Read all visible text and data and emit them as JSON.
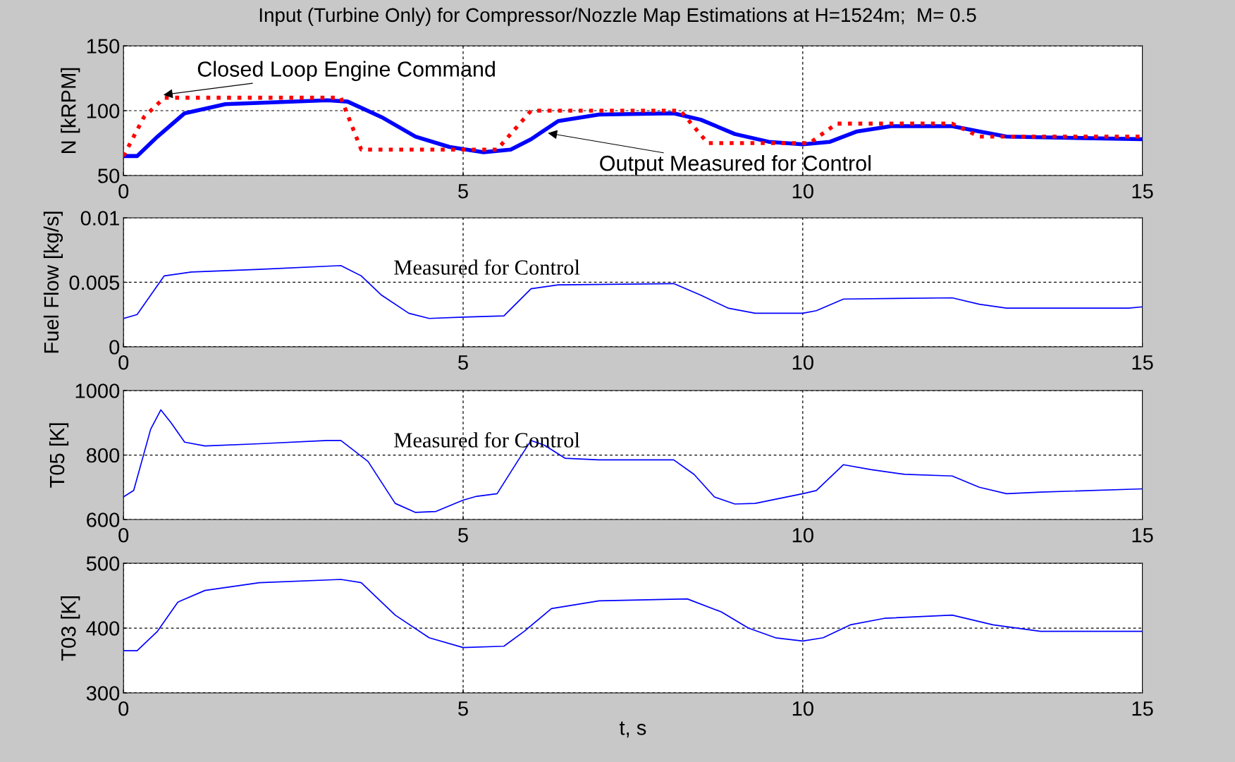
{
  "chart_data": [
    {
      "type": "line",
      "title": "Input (Turbine Only) for Compressor/Nozzle Map Estimations at H=1524m;  M= 0.5",
      "ylabel": "N [kRPM]",
      "xlim": [
        0,
        15
      ],
      "xticks": [
        0,
        5,
        10,
        15
      ],
      "ylim": [
        50,
        150
      ],
      "yticks": [
        50,
        100,
        150
      ],
      "grid": true,
      "series": [
        {
          "color": "#ff0000",
          "line_style": "dotted",
          "x": [
            0,
            0.3,
            0.6,
            3.2,
            3.5,
            5.5,
            6.0,
            8.2,
            8.6,
            10.1,
            10.5,
            12.2,
            12.6,
            15
          ],
          "values": [
            65,
            95,
            110,
            110,
            70,
            70,
            100,
            100,
            75,
            75,
            90,
            90,
            80,
            80
          ]
        },
        {
          "color": "#0000ff",
          "line_style": "solid",
          "x": [
            0,
            0.2,
            0.5,
            0.9,
            1.5,
            3,
            3.3,
            3.8,
            4.3,
            4.8,
            5.3,
            5.7,
            6,
            6.4,
            7,
            8.1,
            8.5,
            9,
            9.5,
            10,
            10.4,
            10.8,
            11.3,
            12.2,
            12.6,
            13,
            15
          ],
          "values": [
            65,
            65,
            80,
            98,
            105,
            108,
            107,
            95,
            80,
            72,
            68,
            70,
            78,
            92,
            97,
            98,
            93,
            82,
            76,
            74,
            76,
            84,
            88,
            88,
            84,
            80,
            78
          ]
        }
      ],
      "annotations": [
        {
          "text": "Closed Loop Engine Command",
          "x": 0.56,
          "y": 112
        },
        {
          "text": "Output Measured for Control",
          "x": 6.22,
          "y": 83
        }
      ]
    },
    {
      "type": "line",
      "ylabel": "Fuel Flow [kg/s]",
      "xlim": [
        0,
        15
      ],
      "xticks": [
        0,
        5,
        10,
        15
      ],
      "ylim": [
        0,
        0.01
      ],
      "yticks": [
        0,
        0.005,
        0.01
      ],
      "grid": true,
      "series": [
        {
          "color": "#0000ff",
          "line_style": "solid",
          "x": [
            0,
            0.2,
            0.6,
            1,
            2,
            3.2,
            3.5,
            3.8,
            4.2,
            4.5,
            5,
            5.6,
            6,
            6.4,
            8.1,
            8.5,
            8.9,
            9.3,
            10,
            10.2,
            10.6,
            12.2,
            12.6,
            13,
            14.8,
            15
          ],
          "values": [
            0.0022,
            0.0025,
            0.0055,
            0.0058,
            0.006,
            0.0063,
            0.0055,
            0.004,
            0.0026,
            0.0022,
            0.0023,
            0.0024,
            0.0045,
            0.0048,
            0.0049,
            0.004,
            0.003,
            0.0026,
            0.0026,
            0.0028,
            0.0037,
            0.0038,
            0.0033,
            0.003,
            0.003,
            0.0031
          ]
        }
      ],
      "annotations": [
        "Measured for Control"
      ]
    },
    {
      "type": "line",
      "ylabel": "T05 [K]",
      "xlim": [
        0,
        15
      ],
      "xticks": [
        0,
        5,
        10,
        15
      ],
      "ylim": [
        600,
        1000
      ],
      "yticks": [
        600,
        800,
        1000
      ],
      "grid": true,
      "series": [
        {
          "color": "#0000ff",
          "line_style": "solid",
          "x": [
            0,
            0.15,
            0.4,
            0.55,
            0.7,
            0.9,
            1.2,
            2,
            3,
            3.2,
            3.6,
            4,
            4.3,
            4.6,
            5,
            5.2,
            5.5,
            5.8,
            6,
            6.2,
            6.5,
            7,
            8.1,
            8.4,
            8.7,
            9,
            9.3,
            10,
            10.2,
            10.6,
            11,
            11.5,
            12.2,
            12.6,
            13,
            13.5,
            15
          ],
          "values": [
            670,
            690,
            880,
            940,
            900,
            840,
            828,
            835,
            845,
            845,
            780,
            650,
            622,
            625,
            660,
            672,
            680,
            780,
            845,
            830,
            790,
            785,
            785,
            740,
            670,
            648,
            650,
            680,
            690,
            770,
            755,
            740,
            735,
            700,
            680,
            685,
            695
          ]
        }
      ],
      "annotations": [
        "Measured for Control"
      ]
    },
    {
      "type": "line",
      "xlabel": "t, s",
      "ylabel": "T03 [K]",
      "xlim": [
        0,
        15
      ],
      "xticks": [
        0,
        5,
        10,
        15
      ],
      "ylim": [
        300,
        500
      ],
      "yticks": [
        300,
        400,
        500
      ],
      "grid": true,
      "series": [
        {
          "color": "#0000ff",
          "line_style": "solid",
          "x": [
            0,
            0.2,
            0.5,
            0.8,
            1.2,
            2,
            3.2,
            3.5,
            4,
            4.5,
            5,
            5.6,
            5.9,
            6.3,
            7,
            8.3,
            8.8,
            9.2,
            9.6,
            10,
            10.3,
            10.7,
            11.2,
            12.2,
            12.8,
            13.5,
            15
          ],
          "values": [
            365,
            365,
            395,
            440,
            458,
            470,
            475,
            470,
            420,
            385,
            370,
            372,
            395,
            430,
            442,
            445,
            425,
            400,
            385,
            380,
            385,
            405,
            415,
            420,
            405,
            395,
            395
          ]
        }
      ]
    }
  ]
}
